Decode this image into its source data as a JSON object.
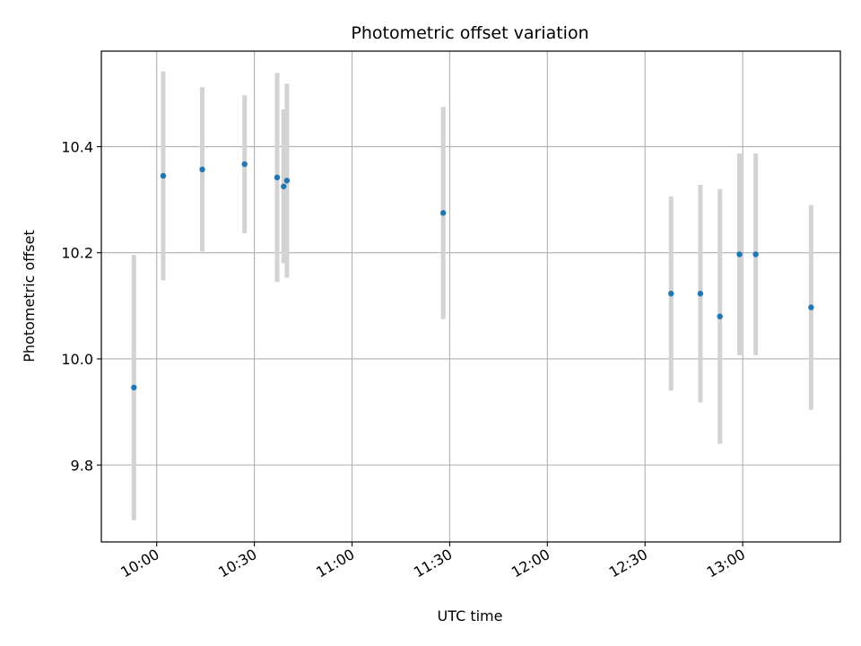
{
  "chart_data": {
    "type": "scatter",
    "title": "Photometric offset variation",
    "xlabel": "UTC time",
    "ylabel": "Photometric offset",
    "grid": true,
    "legend": "none",
    "xlim": [
      "09:43",
      "13:30"
    ],
    "ylim": [
      9.655,
      10.58
    ],
    "x_ticks": [
      "10:00",
      "10:30",
      "11:00",
      "11:30",
      "12:00",
      "12:30",
      "13:00"
    ],
    "y_ticks": [
      "9.8",
      "10.0",
      "10.2",
      "10.4"
    ],
    "colors": {
      "point": "#1f77b4",
      "errorbar": "#d3d3d3",
      "grid": "#b0b0b0"
    },
    "series": [
      {
        "points": [
          {
            "x": "09:53",
            "y": 9.946,
            "yerr": 0.25
          },
          {
            "x": "10:02",
            "y": 10.345,
            "yerr": 0.197
          },
          {
            "x": "10:14",
            "y": 10.357,
            "yerr": 0.155
          },
          {
            "x": "10:27",
            "y": 10.367,
            "yerr": 0.13
          },
          {
            "x": "10:37",
            "y": 10.342,
            "yerr": 0.197
          },
          {
            "x": "10:39",
            "y": 10.325,
            "yerr": 0.145
          },
          {
            "x": "10:40",
            "y": 10.336,
            "yerr": 0.183
          },
          {
            "x": "11:28",
            "y": 10.275,
            "yerr": 0.2
          },
          {
            "x": "12:38",
            "y": 10.123,
            "yerr": 0.183
          },
          {
            "x": "12:47",
            "y": 10.123,
            "yerr": 0.205
          },
          {
            "x": "12:53",
            "y": 10.08,
            "yerr": 0.24
          },
          {
            "x": "12:59",
            "y": 10.197,
            "yerr": 0.19
          },
          {
            "x": "13:04",
            "y": 10.197,
            "yerr": 0.19
          },
          {
            "x": "13:21",
            "y": 10.097,
            "yerr": 0.193
          }
        ]
      }
    ]
  }
}
